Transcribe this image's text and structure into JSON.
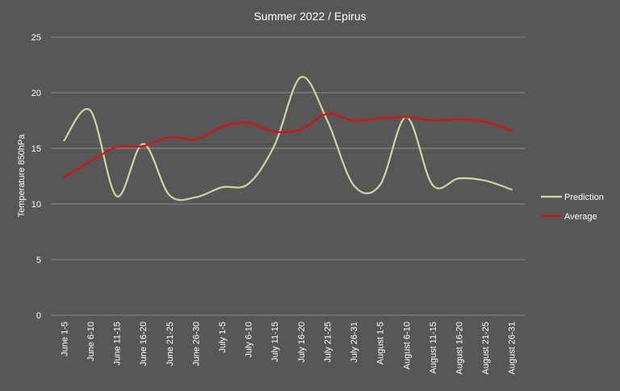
{
  "chart_data": {
    "type": "line",
    "title": "Summer  2022 / Epirus",
    "xlabel": "",
    "ylabel": "Temperature 850hPa",
    "ylim": [
      0,
      25
    ],
    "yticks": [
      0,
      5,
      10,
      15,
      20,
      25
    ],
    "grid": true,
    "legend_position": "right",
    "categories": [
      "June 1-5",
      "June 6-10",
      "June 11-15",
      "June 16-20",
      "June 21-25",
      "June 26-30",
      "July 1-5",
      "July 6-10",
      "July 11-15",
      "July 16-20",
      "July 21-25",
      "July 26-31",
      "August 1-5",
      "August 6-10",
      "August 11-15",
      "August 16-20",
      "August 21-25",
      "August 26-31"
    ],
    "series": [
      {
        "name": "Prediction",
        "color": "#c8d8a0",
        "values": [
          15.7,
          18.4,
          10.7,
          15.4,
          10.8,
          10.6,
          11.5,
          11.8,
          15.3,
          21.4,
          17.5,
          11.7,
          11.7,
          17.8,
          11.7,
          12.3,
          12.1,
          11.3
        ]
      },
      {
        "name": "Average",
        "color": "#dd1111",
        "values": [
          12.4,
          13.8,
          15.1,
          15.2,
          16.0,
          15.8,
          16.9,
          17.3,
          16.5,
          16.7,
          18.1,
          17.5,
          17.7,
          17.8,
          17.5,
          17.6,
          17.4,
          16.6
        ]
      }
    ]
  },
  "colors": {
    "background": "#575757",
    "grid": "#8c8c8c",
    "text": "#ffffff"
  }
}
